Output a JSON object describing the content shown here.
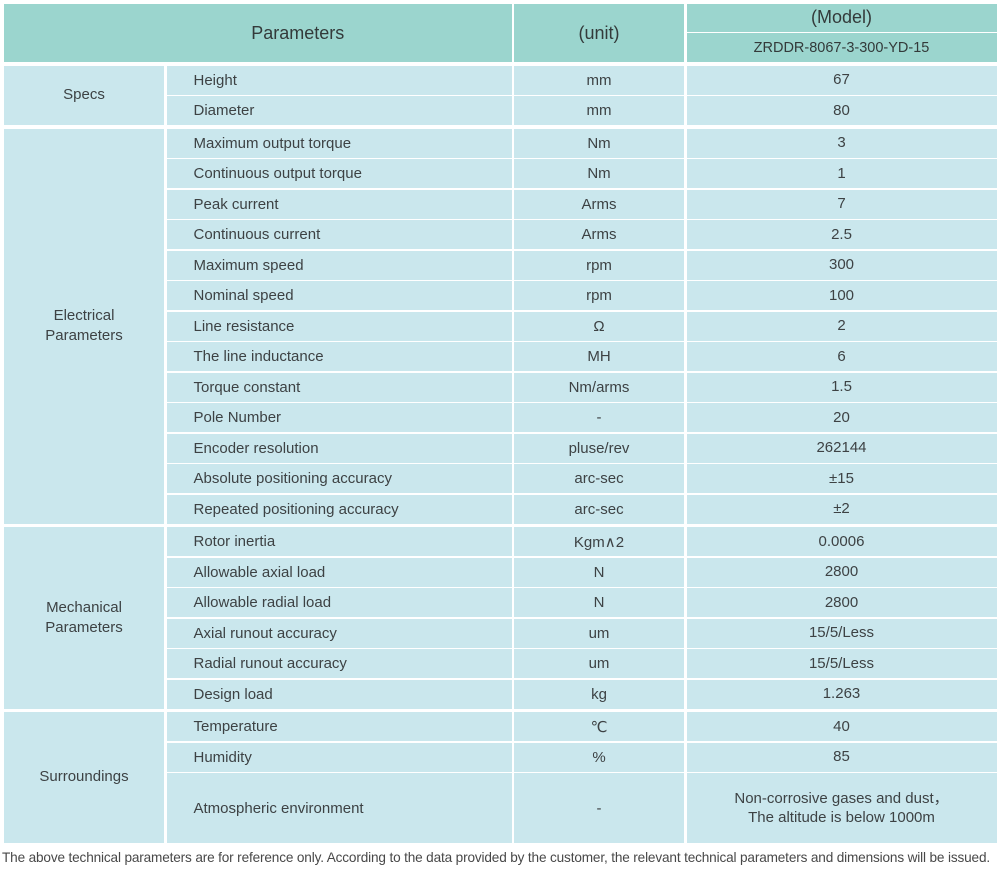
{
  "colors": {
    "header_bg": "#9bd5ce",
    "row_bg": "#cae7ed",
    "text": "#3d4244"
  },
  "header": {
    "parameters_label": "Parameters",
    "unit_label": "(unit)",
    "model_label": "(Model)",
    "model_value": "ZRDDR-8067-3-300-YD-15"
  },
  "sections": [
    {
      "id": "specs",
      "category": "Specs",
      "rows": [
        {
          "name": "Height",
          "unit": "mm",
          "value": "67"
        },
        {
          "name": "Diameter",
          "unit": "mm",
          "value": "80"
        }
      ]
    },
    {
      "id": "electrical-parameters",
      "category": "Electrical\nParameters",
      "rows": [
        {
          "name": "Maximum output torque",
          "unit": "Nm",
          "value": "3"
        },
        {
          "name": "Continuous output torque",
          "unit": "Nm",
          "value": "1"
        },
        {
          "name": "Peak current",
          "unit": "Arms",
          "value": "7"
        },
        {
          "name": "Continuous current",
          "unit": "Arms",
          "value": "2.5"
        },
        {
          "name": "Maximum speed",
          "unit": "rpm",
          "value": "300"
        },
        {
          "name": "Nominal speed",
          "unit": "rpm",
          "value": "100"
        },
        {
          "name": "Line resistance",
          "unit": "Ω",
          "value": "2"
        },
        {
          "name": "The line inductance",
          "unit": "MH",
          "value": "6"
        },
        {
          "name": "Torque constant",
          "unit": "Nm/arms",
          "value": "1.5"
        },
        {
          "name": "Pole Number",
          "unit": "-",
          "value": "20"
        },
        {
          "name": "Encoder resolution",
          "unit": "pluse/rev",
          "value": "262144"
        },
        {
          "name": "Absolute positioning accuracy",
          "unit": "arc-sec",
          "value": "±15"
        },
        {
          "name": "Repeated positioning accuracy",
          "unit": "arc-sec",
          "value": "±2"
        }
      ]
    },
    {
      "id": "mechanical-parameters",
      "category": "Mechanical\nParameters",
      "rows": [
        {
          "name": "Rotor inertia",
          "unit": "Kgm∧2",
          "value": "0.0006"
        },
        {
          "name": "Allowable axial load",
          "unit": "N",
          "value": "2800"
        },
        {
          "name": "Allowable radial load",
          "unit": "N",
          "value": "2800"
        },
        {
          "name": "Axial runout accuracy",
          "unit": "um",
          "value": "15/5/Less"
        },
        {
          "name": "Radial runout accuracy",
          "unit": "um",
          "value": "15/5/Less"
        },
        {
          "name": "Design load",
          "unit": "kg",
          "value": "1.263"
        }
      ]
    },
    {
      "id": "surroundings",
      "category": "Surroundings",
      "rows": [
        {
          "name": "Temperature",
          "unit": "℃",
          "value": "40"
        },
        {
          "name": "Humidity",
          "unit": "%",
          "value": "85"
        },
        {
          "name": "Atmospheric environment",
          "unit": "-",
          "value": "Non-corrosive gases and dust，\nThe altitude is below 1000m",
          "tall": true
        }
      ]
    }
  ],
  "footer": "The above technical parameters are for reference only. According to the data provided by the customer, the relevant technical parameters and dimensions will be issued."
}
